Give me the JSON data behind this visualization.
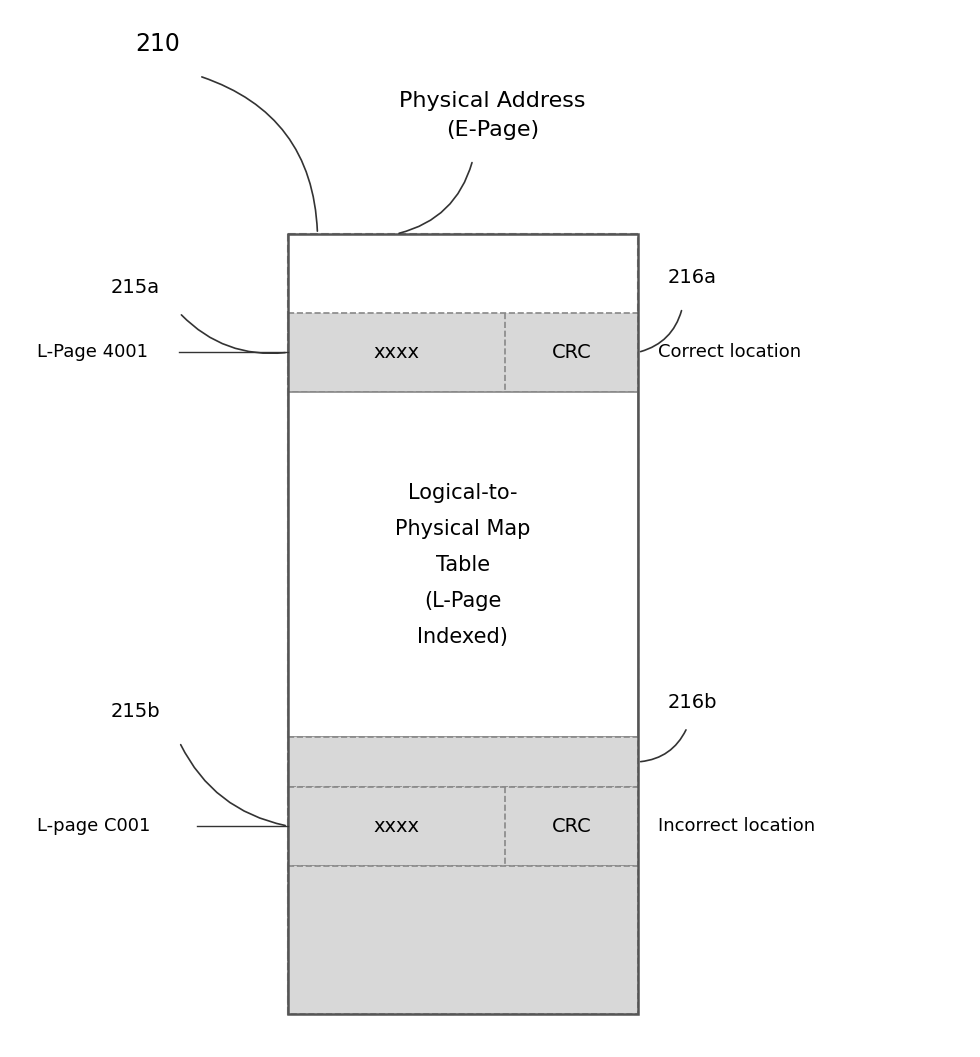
{
  "background_color": "#ffffff",
  "middle_label": "Logical-to-\nPhysical Map\nTable\n(L-Page\nIndexed)",
  "top_label": "Physical Address\n(E-Page)",
  "label_210": "210",
  "label_215a": "215a",
  "label_215b": "215b",
  "label_216a": "216a",
  "label_216b": "216b",
  "label_lpage4001": "L-Page 4001",
  "label_lpageC001": "L-page C001",
  "label_correct": "Correct location",
  "label_incorrect": "Incorrect location",
  "row_a_xxxx": "xxxx",
  "row_a_crc": "CRC",
  "row_b_xxxx": "xxxx",
  "row_b_crc": "CRC",
  "border_color": "#888888",
  "dot_color": "#d8d8d8",
  "text_color": "#000000",
  "font_size_main": 14,
  "font_size_label": 13,
  "font_size_ref": 14,
  "font_size_middle": 15,
  "font_size_210": 17,
  "font_size_top_label": 16
}
